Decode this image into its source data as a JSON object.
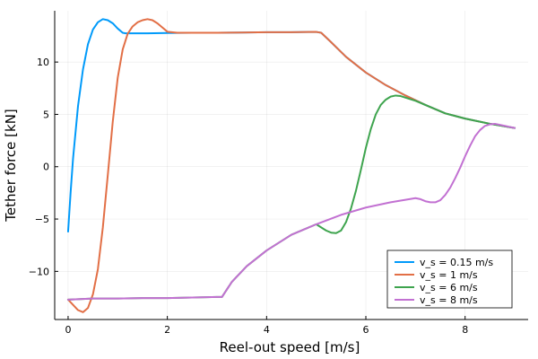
{
  "chart_data": {
    "type": "line",
    "title": "",
    "xlabel": "Reel-out speed [m/s]",
    "ylabel": "Tether force [kN]",
    "xlim": [
      -0.27,
      9.27
    ],
    "ylim": [
      -14.6,
      14.9
    ],
    "xticks": [
      0,
      2,
      4,
      6,
      8
    ],
    "yticks": [
      -10,
      -5,
      0,
      5,
      10
    ],
    "xtick_labels": [
      "0",
      "2",
      "4",
      "6",
      "8"
    ],
    "ytick_labels": [
      "−10",
      "−5",
      "0",
      "5",
      "10"
    ],
    "grid": true,
    "legend_position": "bottom-right",
    "series": [
      {
        "name": "v_s = 0.15 m/s",
        "color": "#009AFA",
        "x": [
          0.0,
          0.05,
          0.1,
          0.2,
          0.3,
          0.4,
          0.5,
          0.6,
          0.7,
          0.8,
          0.9,
          1.0,
          1.1,
          1.15,
          1.3,
          1.6,
          2.0,
          2.5,
          3.0,
          3.5,
          4.0,
          4.5,
          5.0,
          5.1,
          5.3,
          5.6,
          6.0,
          6.4,
          6.8,
          7.2,
          7.6,
          8.0,
          8.5,
          9.0
        ],
        "y": [
          -6.2,
          -2.5,
          0.8,
          5.8,
          9.3,
          11.7,
          13.1,
          13.8,
          14.1,
          14.0,
          13.7,
          13.2,
          12.8,
          12.75,
          12.75,
          12.75,
          12.78,
          12.8,
          12.8,
          12.82,
          12.85,
          12.85,
          12.88,
          12.8,
          11.9,
          10.5,
          9.0,
          7.8,
          6.8,
          5.9,
          5.1,
          4.6,
          4.1,
          3.7
        ]
      },
      {
        "name": "v_s = 1 m/s",
        "color": "#E26F46",
        "x": [
          0.0,
          0.1,
          0.2,
          0.3,
          0.4,
          0.5,
          0.6,
          0.7,
          0.8,
          0.9,
          1.0,
          1.1,
          1.2,
          1.3,
          1.4,
          1.5,
          1.6,
          1.7,
          1.8,
          1.9,
          2.0,
          2.2,
          2.5,
          3.0,
          3.5,
          4.0,
          4.5,
          5.0,
          5.1,
          5.3,
          5.6,
          6.0,
          6.4,
          6.8,
          7.2,
          7.6,
          8.0,
          8.5,
          9.0
        ],
        "y": [
          -12.7,
          -13.2,
          -13.7,
          -13.9,
          -13.5,
          -12.2,
          -9.8,
          -5.8,
          -0.8,
          4.3,
          8.5,
          11.2,
          12.7,
          13.4,
          13.8,
          14.0,
          14.1,
          14.0,
          13.7,
          13.3,
          12.9,
          12.8,
          12.8,
          12.8,
          12.82,
          12.85,
          12.85,
          12.88,
          12.8,
          11.9,
          10.5,
          9.0,
          7.8,
          6.8,
          5.9,
          5.1,
          4.6,
          4.1,
          3.7
        ]
      },
      {
        "name": "v_s = 6 m/s",
        "color": "#3EA44E",
        "x": [
          0.0,
          0.5,
          1.0,
          1.5,
          2.0,
          2.5,
          3.0,
          3.1,
          3.3,
          3.6,
          4.0,
          4.5,
          5.0,
          5.1,
          5.2,
          5.3,
          5.4,
          5.5,
          5.6,
          5.7,
          5.8,
          5.9,
          6.0,
          6.1,
          6.2,
          6.3,
          6.4,
          6.5,
          6.6,
          6.7,
          6.8,
          7.0,
          7.2,
          7.6,
          8.0,
          8.5,
          9.0
        ],
        "y": [
          -12.7,
          -12.6,
          -12.6,
          -12.55,
          -12.55,
          -12.5,
          -12.45,
          -12.45,
          -11.0,
          -9.5,
          -8.0,
          -6.5,
          -5.5,
          -5.8,
          -6.1,
          -6.3,
          -6.35,
          -6.1,
          -5.3,
          -4.0,
          -2.3,
          -0.3,
          1.8,
          3.6,
          5.0,
          5.9,
          6.4,
          6.7,
          6.8,
          6.75,
          6.6,
          6.3,
          5.9,
          5.1,
          4.6,
          4.1,
          3.7
        ]
      },
      {
        "name": "v_s = 8 m/s",
        "color": "#C271D2",
        "x": [
          0.0,
          0.5,
          1.0,
          1.5,
          2.0,
          2.5,
          3.0,
          3.1,
          3.3,
          3.6,
          4.0,
          4.5,
          5.0,
          5.5,
          6.0,
          6.5,
          7.0,
          7.1,
          7.2,
          7.3,
          7.4,
          7.5,
          7.6,
          7.7,
          7.8,
          7.9,
          8.0,
          8.1,
          8.2,
          8.3,
          8.4,
          8.5,
          8.6,
          8.7,
          8.8,
          8.9,
          9.0
        ],
        "y": [
          -12.7,
          -12.6,
          -12.6,
          -12.55,
          -12.55,
          -12.5,
          -12.45,
          -12.45,
          -11.0,
          -9.5,
          -8.0,
          -6.5,
          -5.5,
          -4.6,
          -3.9,
          -3.4,
          -3.0,
          -3.1,
          -3.3,
          -3.4,
          -3.4,
          -3.2,
          -2.7,
          -2.0,
          -1.1,
          -0.1,
          1.0,
          2.0,
          2.9,
          3.5,
          3.9,
          4.05,
          4.1,
          4.0,
          3.9,
          3.8,
          3.7
        ]
      }
    ]
  }
}
